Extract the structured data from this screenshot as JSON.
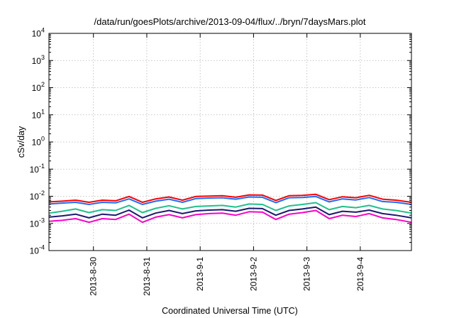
{
  "chart_data": {
    "type": "line",
    "title": "/data/run/goesPlots/archive/2013-09-04/flux/../bryn/7daysMars.plot",
    "xlabel": "Coordinated Universal Time (UTC)",
    "ylabel": "cSv/day",
    "y_scale": "log",
    "ylim": [
      "1e-4",
      "1e4"
    ],
    "xlim": [
      "2013-08-29 04:00",
      "2013-09-04 23:00"
    ],
    "grid": true,
    "legend": "none",
    "y_ticks": [
      {
        "base": "10",
        "exp": "-4",
        "value": "1e-4"
      },
      {
        "base": "10",
        "exp": "-3",
        "value": "1e-3"
      },
      {
        "base": "10",
        "exp": "-2",
        "value": "1e-2"
      },
      {
        "base": "10",
        "exp": "-1",
        "value": "1e-1"
      },
      {
        "base": "10",
        "exp": "0",
        "value": "1e0"
      },
      {
        "base": "10",
        "exp": "1",
        "value": "1e1"
      },
      {
        "base": "10",
        "exp": "2",
        "value": "1e2"
      },
      {
        "base": "10",
        "exp": "3",
        "value": "1e3"
      },
      {
        "base": "10",
        "exp": "4",
        "value": "1e4"
      }
    ],
    "x_ticks": [
      {
        "label": "2013-8-30",
        "date": "2013-08-30 00:00"
      },
      {
        "label": "2013-8-31",
        "date": "2013-08-31 00:00"
      },
      {
        "label": "2013-9-1",
        "date": "2013-09-01 00:00"
      },
      {
        "label": "2013-9-2",
        "date": "2013-09-02 00:00"
      },
      {
        "label": "2013-9-3",
        "date": "2013-09-03 00:00"
      },
      {
        "label": "2013-9-4",
        "date": "2013-09-04 00:00"
      }
    ],
    "x": [
      "2013-08-29 04:00",
      "2013-08-29 10:00",
      "2013-08-29 16:00",
      "2013-08-29 22:00",
      "2013-08-30 04:00",
      "2013-08-30 10:00",
      "2013-08-30 16:00",
      "2013-08-30 22:00",
      "2013-08-31 04:00",
      "2013-08-31 10:00",
      "2013-08-31 16:00",
      "2013-08-31 22:00",
      "2013-09-01 04:00",
      "2013-09-01 10:00",
      "2013-09-01 16:00",
      "2013-09-01 22:00",
      "2013-09-02 04:00",
      "2013-09-02 10:00",
      "2013-09-02 16:00",
      "2013-09-02 22:00",
      "2013-09-03 04:00",
      "2013-09-03 10:00",
      "2013-09-03 16:00",
      "2013-09-03 22:00",
      "2013-09-04 04:00",
      "2013-09-04 10:00",
      "2013-09-04 16:00",
      "2013-09-04 23:00"
    ],
    "series": [
      {
        "color": "#ff0000",
        "values": [
          0.0062,
          0.0066,
          0.0072,
          0.006,
          0.0072,
          0.0068,
          0.0098,
          0.006,
          0.008,
          0.0094,
          0.0072,
          0.0098,
          0.0102,
          0.0105,
          0.0092,
          0.0112,
          0.011,
          0.007,
          0.0105,
          0.0108,
          0.0118,
          0.0075,
          0.0096,
          0.0088,
          0.0108,
          0.0078,
          0.0072,
          0.006
        ]
      },
      {
        "color": "#1e6cff",
        "values": [
          0.0052,
          0.0056,
          0.006,
          0.005,
          0.006,
          0.0057,
          0.008,
          0.005,
          0.0066,
          0.0078,
          0.006,
          0.0082,
          0.0086,
          0.0088,
          0.0078,
          0.0094,
          0.0092,
          0.0058,
          0.0088,
          0.009,
          0.0098,
          0.0062,
          0.008,
          0.0073,
          0.009,
          0.0064,
          0.006,
          0.005
        ]
      },
      {
        "color": "#20c08a",
        "values": [
          0.0024,
          0.0028,
          0.0034,
          0.0025,
          0.0032,
          0.003,
          0.0046,
          0.0025,
          0.0036,
          0.0045,
          0.0034,
          0.0042,
          0.0044,
          0.0046,
          0.004,
          0.0052,
          0.005,
          0.003,
          0.0044,
          0.005,
          0.0058,
          0.0032,
          0.0042,
          0.0038,
          0.0046,
          0.0034,
          0.003,
          0.0024
        ]
      },
      {
        "color": "#1a1a6e",
        "values": [
          0.0017,
          0.0019,
          0.0022,
          0.0016,
          0.0022,
          0.002,
          0.0031,
          0.0016,
          0.0024,
          0.003,
          0.0023,
          0.0029,
          0.0031,
          0.0032,
          0.0028,
          0.0036,
          0.0035,
          0.002,
          0.003,
          0.0034,
          0.004,
          0.0021,
          0.0028,
          0.0026,
          0.0031,
          0.0023,
          0.002,
          0.0016
        ]
      },
      {
        "color": "#ff00c8",
        "values": [
          0.0012,
          0.0013,
          0.0015,
          0.0011,
          0.0015,
          0.0014,
          0.0022,
          0.0011,
          0.0017,
          0.0021,
          0.0016,
          0.0021,
          0.0023,
          0.0024,
          0.002,
          0.0027,
          0.0026,
          0.0014,
          0.0022,
          0.0025,
          0.003,
          0.0015,
          0.002,
          0.0018,
          0.0023,
          0.0016,
          0.0014,
          0.0011
        ]
      }
    ]
  }
}
